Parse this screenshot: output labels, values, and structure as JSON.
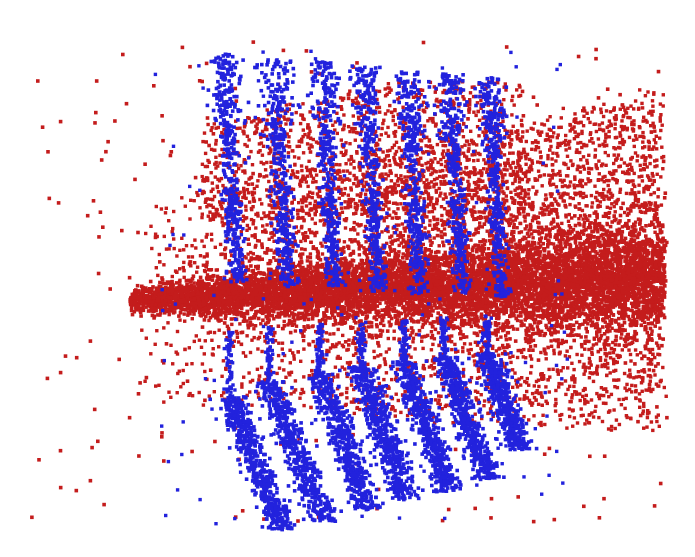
{
  "scene": {
    "kind": "3d-point-cloud-render",
    "background_color": "#ffffff",
    "point_classes": [
      {
        "id": "class-a",
        "color": "#c41c1c",
        "role": "dense scattered cloud with horizontal band"
      },
      {
        "id": "class-b",
        "color": "#2222dd",
        "role": "vertical strip clusters"
      }
    ],
    "visible_text": []
  }
}
